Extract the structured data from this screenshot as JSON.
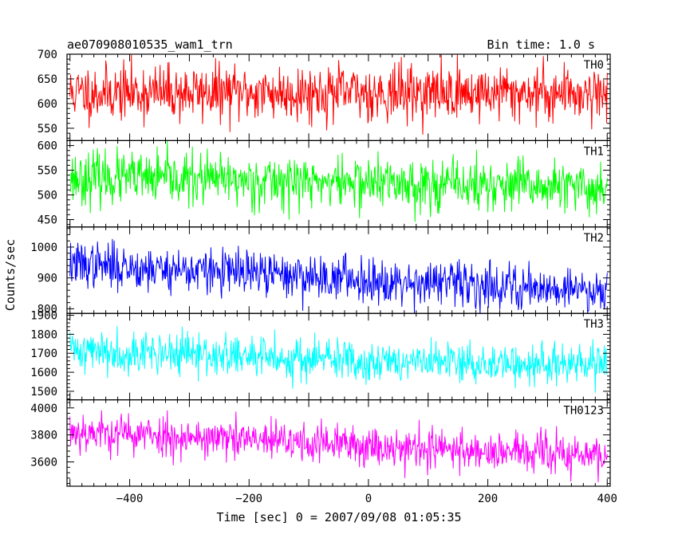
{
  "header": {
    "title": "ae070908010535_wam1_trn",
    "bin_time": "Bin time: 1.0 s"
  },
  "chart_data": {
    "type": "line",
    "xlabel": "Time [sec] 0 = 2007/09/08 01:05:35",
    "ylabel": "Counts/sec",
    "xlim": [
      -505,
      405
    ],
    "x_ticks": [
      -400,
      -200,
      0,
      200,
      400
    ],
    "x_tick_labels": [
      "−400",
      "−200",
      "0",
      "200",
      "400"
    ],
    "x_step": 1,
    "panels": [
      {
        "name": "TH0",
        "color": "#ff0000",
        "ylim": [
          525,
          700
        ],
        "y_ticks": [
          550,
          600,
          650,
          700
        ],
        "y_tick_labels": [
          "550",
          "600",
          "650",
          "700"
        ],
        "trend": [
          [
            -500,
            622
          ],
          [
            400,
            622
          ]
        ],
        "noise_sigma": 28,
        "seed": 11
      },
      {
        "name": "TH1",
        "color": "#00ff00",
        "ylim": [
          435,
          610
        ],
        "y_ticks": [
          450,
          500,
          550,
          600
        ],
        "y_tick_labels": [
          "450",
          "500",
          "550",
          "600"
        ],
        "trend": [
          [
            -500,
            535
          ],
          [
            0,
            525
          ],
          [
            400,
            512
          ]
        ],
        "noise_sigma": 26,
        "seed": 23
      },
      {
        "name": "TH2",
        "color": "#0000ff",
        "ylim": [
          785,
          1065
        ],
        "y_ticks": [
          800,
          900,
          1000
        ],
        "y_tick_labels": [
          "800",
          "900",
          "1000"
        ],
        "trend": [
          [
            -500,
            945
          ],
          [
            -200,
            915
          ],
          [
            100,
            885
          ],
          [
            400,
            860
          ]
        ],
        "noise_sigma": 36,
        "seed": 37
      },
      {
        "name": "TH3",
        "color": "#00ffff",
        "ylim": [
          1455,
          1910
        ],
        "y_ticks": [
          1500,
          1600,
          1700,
          1800,
          1900
        ],
        "y_tick_labels": [
          "1500",
          "1600",
          "1700",
          "1800",
          "1900"
        ],
        "trend": [
          [
            -500,
            1720
          ],
          [
            -200,
            1680
          ],
          [
            100,
            1650
          ],
          [
            400,
            1635
          ]
        ],
        "noise_sigma": 55,
        "seed": 41
      },
      {
        "name": "TH0123",
        "color": "#ff00ff",
        "ylim": [
          3420,
          4060
        ],
        "y_ticks": [
          3600,
          3800,
          4000
        ],
        "y_tick_labels": [
          "3600",
          "3800",
          "4000"
        ],
        "trend": [
          [
            -500,
            3830
          ],
          [
            -200,
            3760
          ],
          [
            100,
            3700
          ],
          [
            400,
            3640
          ]
        ],
        "noise_sigma": 75,
        "seed": 53
      }
    ]
  }
}
